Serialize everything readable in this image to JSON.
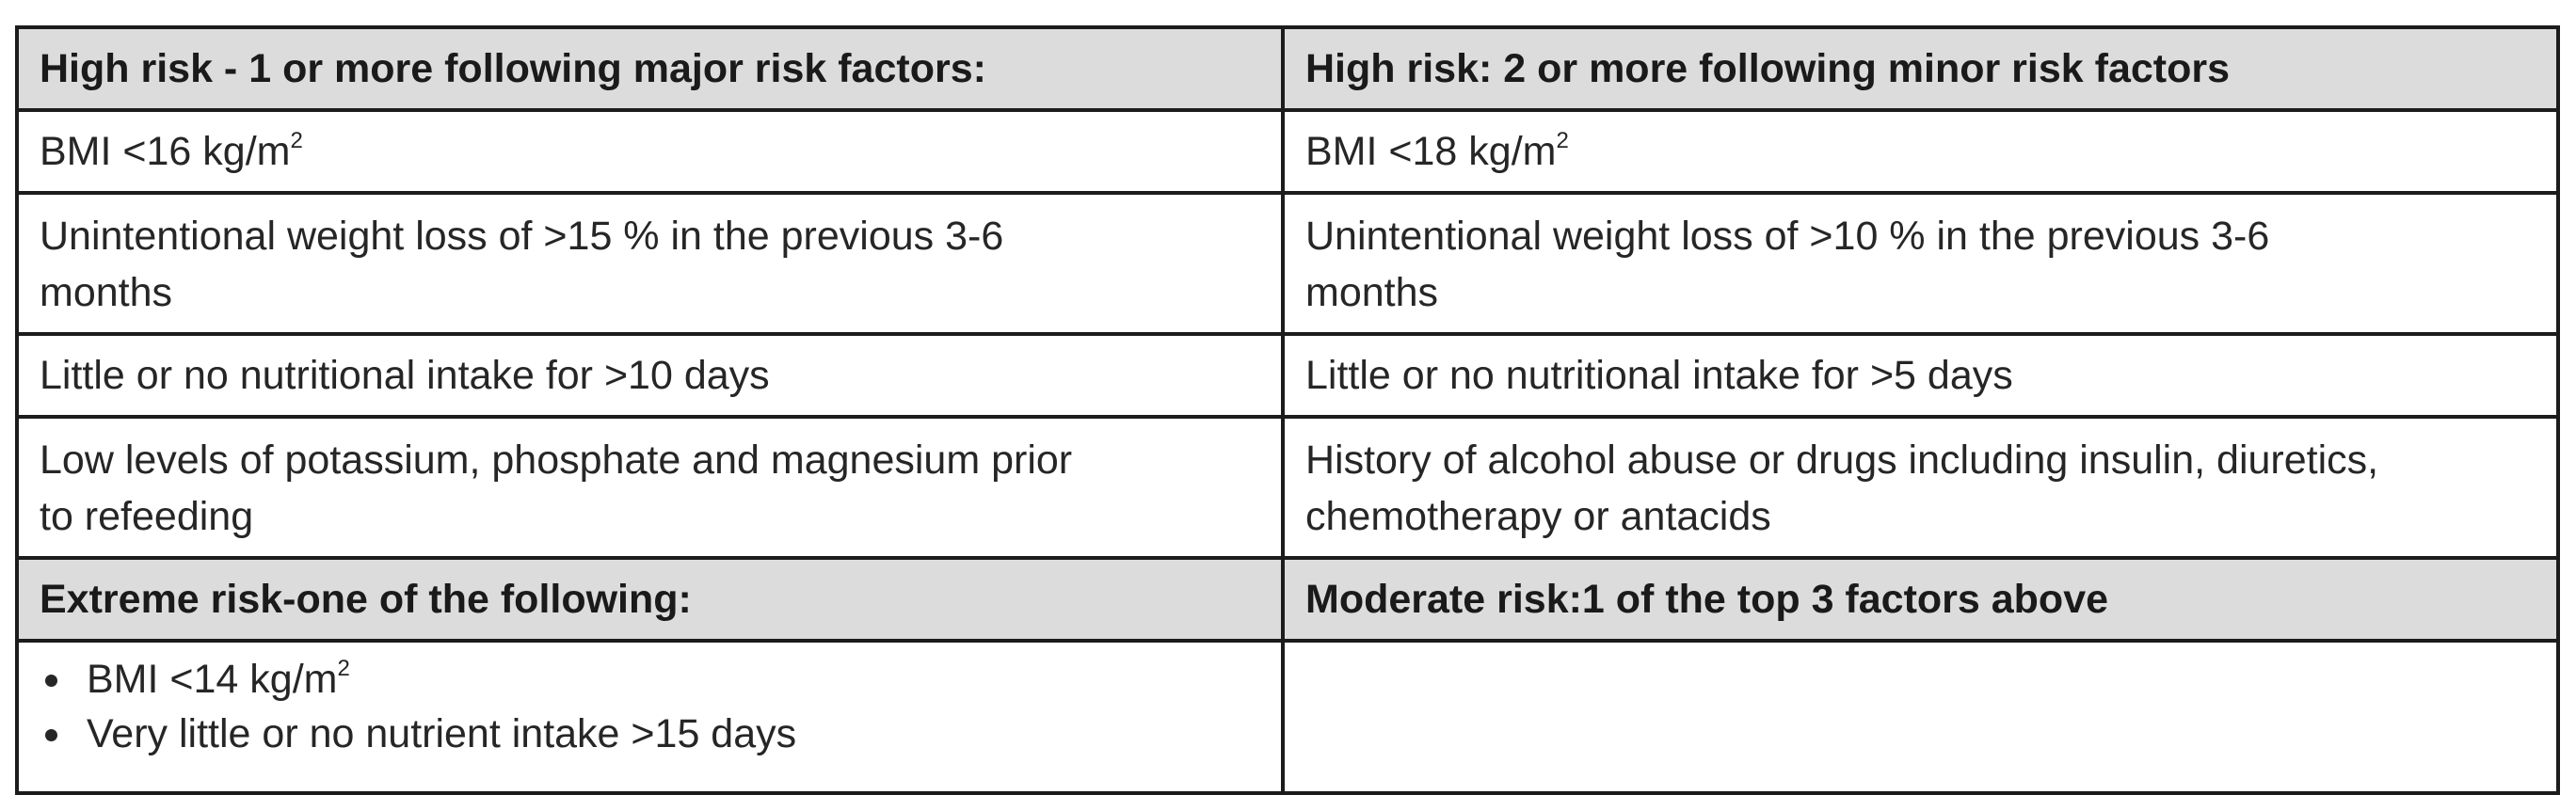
{
  "table": {
    "header_left": "High risk - 1 or more following major risk factors:",
    "header_right": "High risk: 2 or more following minor risk factors",
    "rows": [
      {
        "left_text": "BMI <16 kg/m",
        "left_sup": "2",
        "right_text": "BMI <18 kg/m",
        "right_sup": "2"
      },
      {
        "left_line1": "Unintentional weight loss of >15 % in the previous 3-6",
        "left_line2": "months",
        "right_line1": "Unintentional weight loss of >10 % in the previous 3-6",
        "right_line2": "months"
      },
      {
        "left": "Little or no nutritional intake for >10 days",
        "right": "Little or no nutritional intake for >5 days"
      },
      {
        "left_line1": "Low levels of potassium, phosphate and magnesium prior",
        "left_line2": "to refeeding",
        "right_line1": "History of alcohol abuse or drugs including insulin, diuretics,",
        "right_line2": "chemotherapy or antacids"
      }
    ],
    "subheader_left": "Extreme risk-one of the following:",
    "subheader_right": "Moderate risk:1 of the top 3 factors above",
    "extreme_bullets": [
      {
        "text": "BMI <14 kg/m",
        "sup": "2"
      },
      {
        "text": "Very little or no nutrient intake >15 days"
      }
    ],
    "moderate_cell": ""
  }
}
